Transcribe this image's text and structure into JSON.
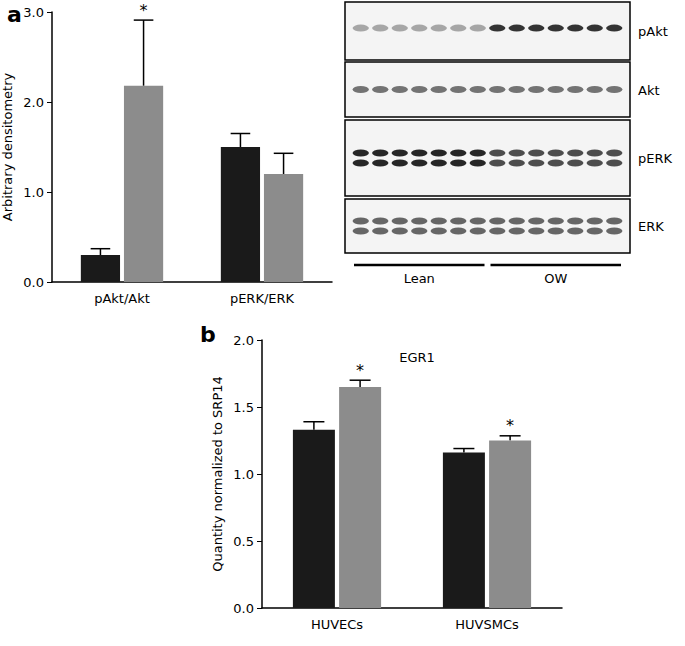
{
  "chart_data": [
    {
      "type": "bar",
      "panel": "a",
      "y_label": "Arbitrary densitometry",
      "categories": [
        "pAkt/Akt",
        "pERK/ERK"
      ],
      "series": [
        {
          "color": "#1a1a1a",
          "values": [
            0.3,
            1.5
          ],
          "errors": [
            0.07,
            0.15
          ],
          "annotations": [
            null,
            null
          ]
        },
        {
          "color": "#8c8c8c",
          "values": [
            2.18,
            1.2
          ],
          "errors": [
            0.73,
            0.23
          ],
          "annotations": [
            "*",
            null
          ]
        }
      ],
      "ylim": [
        0,
        3
      ],
      "yticks": [
        {
          "value": 0,
          "label": "0.0"
        },
        {
          "value": 1,
          "label": "1.0"
        },
        {
          "value": 2,
          "label": "2.0"
        },
        {
          "value": 3,
          "label": "3.0"
        }
      ],
      "grid": false
    },
    {
      "type": "bar",
      "panel": "b",
      "title": "EGR1",
      "y_label": "Quantity normalized to SRP14",
      "categories": [
        "HUVECs",
        "HUVSMCs"
      ],
      "series": [
        {
          "color": "#1a1a1a",
          "values": [
            1.33,
            1.16
          ],
          "errors": [
            0.06,
            0.03
          ],
          "annotations": [
            null,
            null
          ]
        },
        {
          "color": "#8c8c8c",
          "values": [
            1.65,
            1.25
          ],
          "errors": [
            0.05,
            0.035
          ],
          "annotations": [
            "*",
            "*"
          ]
        }
      ],
      "ylim": [
        0,
        2
      ],
      "yticks": [
        {
          "value": 0,
          "label": "0.0"
        },
        {
          "value": 0.5,
          "label": "0.5"
        },
        {
          "value": 1,
          "label": "1.0"
        },
        {
          "value": 1.5,
          "label": "1.5"
        },
        {
          "value": 2,
          "label": "2.0"
        }
      ],
      "grid": false
    }
  ],
  "blot": {
    "rows": [
      "pAkt",
      "Akt",
      "pERK",
      "ERK"
    ],
    "groups": [
      "Lean",
      "OW"
    ]
  }
}
